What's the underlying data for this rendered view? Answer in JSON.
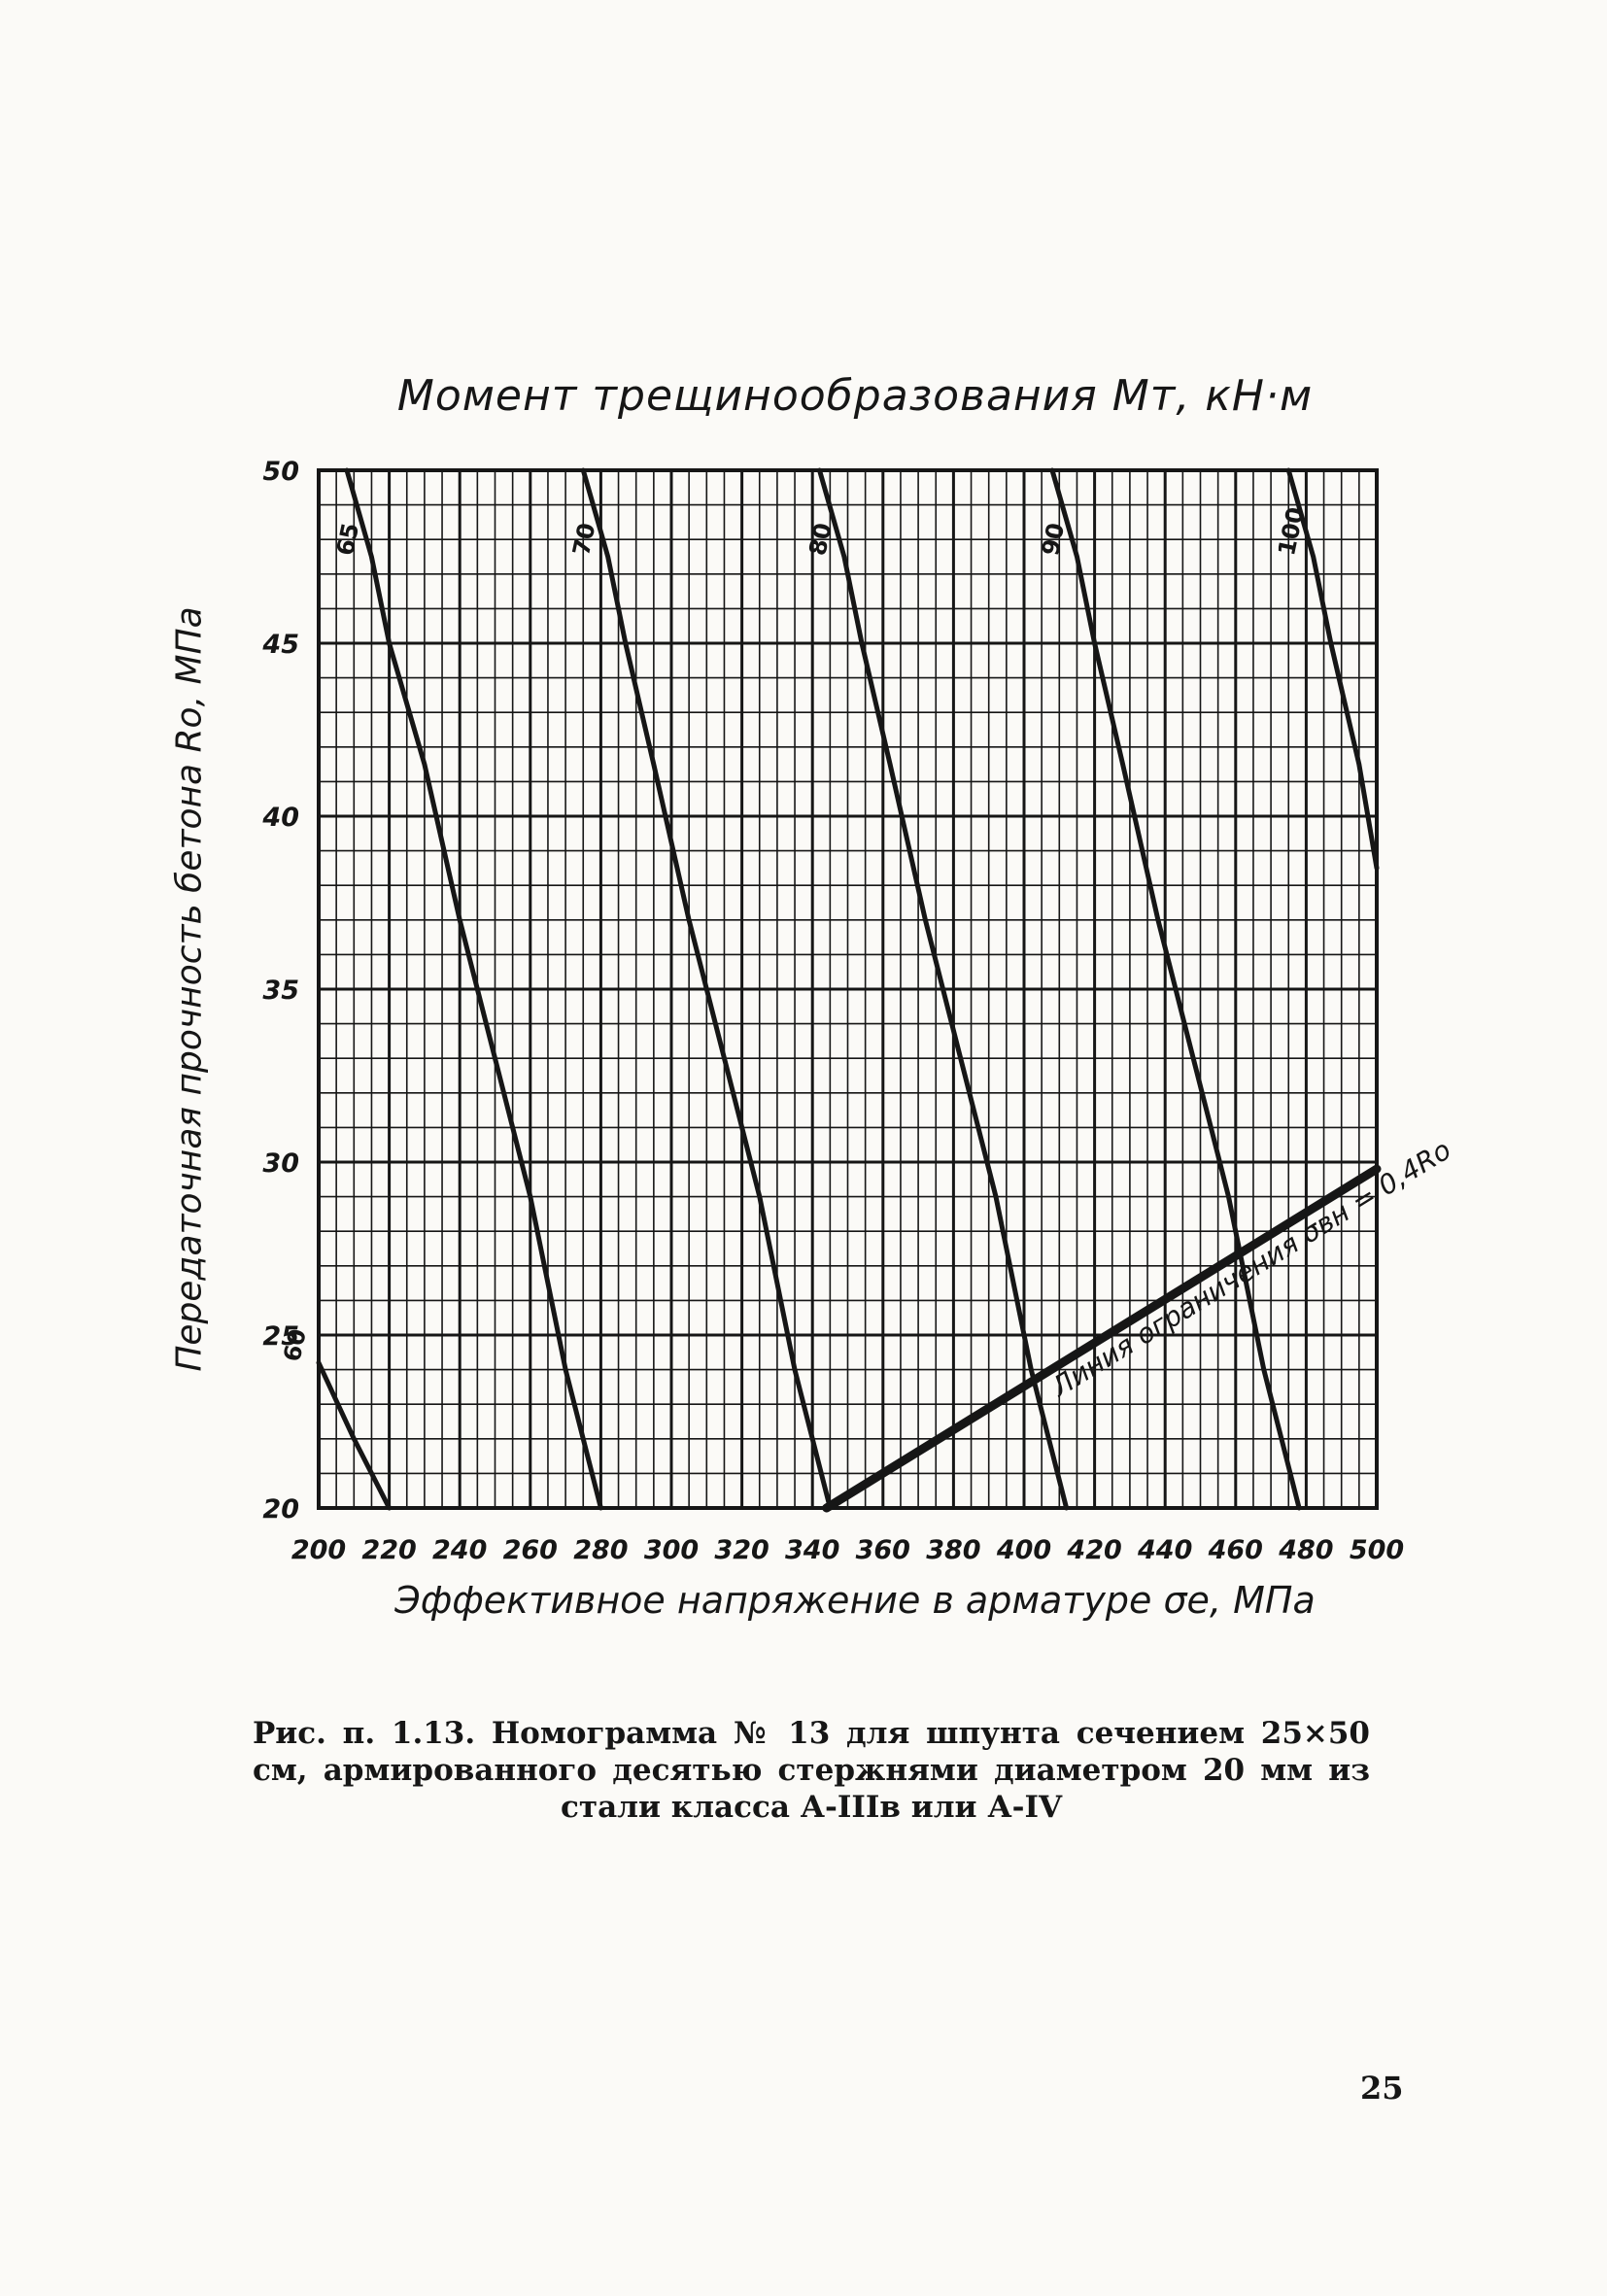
{
  "chart_data": {
    "type": "line",
    "title": "Момент трещинообразования Mт, кН·м",
    "xlabel": "Эффективное напряжение в арматуре σe, МПа",
    "ylabel": "Передаточная прочность бетона Ro, МПа",
    "xlim": [
      200,
      500
    ],
    "ylim": [
      20,
      50
    ],
    "x_ticks": [
      200,
      220,
      240,
      260,
      280,
      300,
      320,
      340,
      360,
      380,
      400,
      420,
      440,
      460,
      480,
      500
    ],
    "y_ticks": [
      20,
      25,
      30,
      35,
      40,
      45,
      50
    ],
    "grid": true,
    "series": [
      {
        "name": "60",
        "x": [
          200,
          210,
          220
        ],
        "y": [
          24.2,
          22,
          20
        ]
      },
      {
        "name": "65",
        "x": [
          208,
          215,
          220,
          230,
          240,
          250,
          260,
          270,
          280
        ],
        "y": [
          50,
          47.5,
          45,
          41.5,
          37,
          33,
          29,
          24,
          20
        ]
      },
      {
        "name": "70",
        "x": [
          275,
          282,
          287,
          295,
          305,
          315,
          325,
          335,
          345
        ],
        "y": [
          50,
          47.5,
          45,
          41.5,
          37,
          33,
          29,
          24,
          20
        ]
      },
      {
        "name": "80",
        "x": [
          342,
          349,
          354,
          362,
          372,
          382,
          392,
          402,
          412
        ],
        "y": [
          50,
          47.5,
          45,
          41.5,
          37,
          33,
          29,
          24,
          20
        ]
      },
      {
        "name": "90",
        "x": [
          408,
          415,
          420,
          428,
          438,
          448,
          458,
          468,
          478
        ],
        "y": [
          50,
          47.5,
          45,
          41.5,
          37,
          33,
          29,
          24,
          20
        ]
      },
      {
        "name": "100",
        "x": [
          475,
          482,
          487,
          495,
          500
        ],
        "y": [
          50,
          47.5,
          45,
          41.5,
          38.5
        ]
      }
    ],
    "annotations": [
      {
        "text": "Линия ограничения σвн = 0,4Ro",
        "x": [
          344,
          500
        ],
        "y": [
          20,
          29.8
        ]
      }
    ]
  },
  "caption": "Рис. п. 1.13. Номограмма № 13 для шпунта сечением 25×50 см, армированного десятью стержнями диаметром 20 мм из стали класса А-IIIв или А-IV",
  "page_number": "25",
  "colors": {
    "ink": "#161616",
    "paper": "#fbfaf7"
  }
}
